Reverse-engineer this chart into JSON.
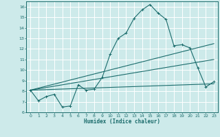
{
  "xlabel": "Humidex (Indice chaleur)",
  "bg_color": "#cdeaea",
  "grid_color": "#ffffff",
  "line_color": "#1a6b6b",
  "xlim": [
    -0.5,
    23.5
  ],
  "ylim": [
    6,
    16.5
  ],
  "x_ticks": [
    0,
    1,
    2,
    3,
    4,
    5,
    6,
    7,
    8,
    9,
    10,
    11,
    12,
    13,
    14,
    15,
    16,
    17,
    18,
    19,
    20,
    21,
    22,
    23
  ],
  "y_ticks": [
    6,
    7,
    8,
    9,
    10,
    11,
    12,
    13,
    14,
    15,
    16
  ],
  "series1_x": [
    0,
    1,
    2,
    3,
    4,
    5,
    6,
    7,
    8,
    9,
    10,
    11,
    12,
    13,
    14,
    15,
    16,
    17,
    18,
    19,
    20,
    21,
    22,
    23
  ],
  "series1_y": [
    8.1,
    7.1,
    7.5,
    7.7,
    6.5,
    6.6,
    8.6,
    8.1,
    8.2,
    9.3,
    11.5,
    13.0,
    13.5,
    14.9,
    15.7,
    16.2,
    15.4,
    14.8,
    12.3,
    12.4,
    12.1,
    10.2,
    8.4,
    8.9
  ],
  "series2_x": [
    0,
    23
  ],
  "series2_y": [
    8.1,
    12.5
  ],
  "series3_x": [
    0,
    23
  ],
  "series3_y": [
    8.1,
    11.0
  ],
  "series4_x": [
    0,
    23
  ],
  "series4_y": [
    8.1,
    8.7
  ]
}
